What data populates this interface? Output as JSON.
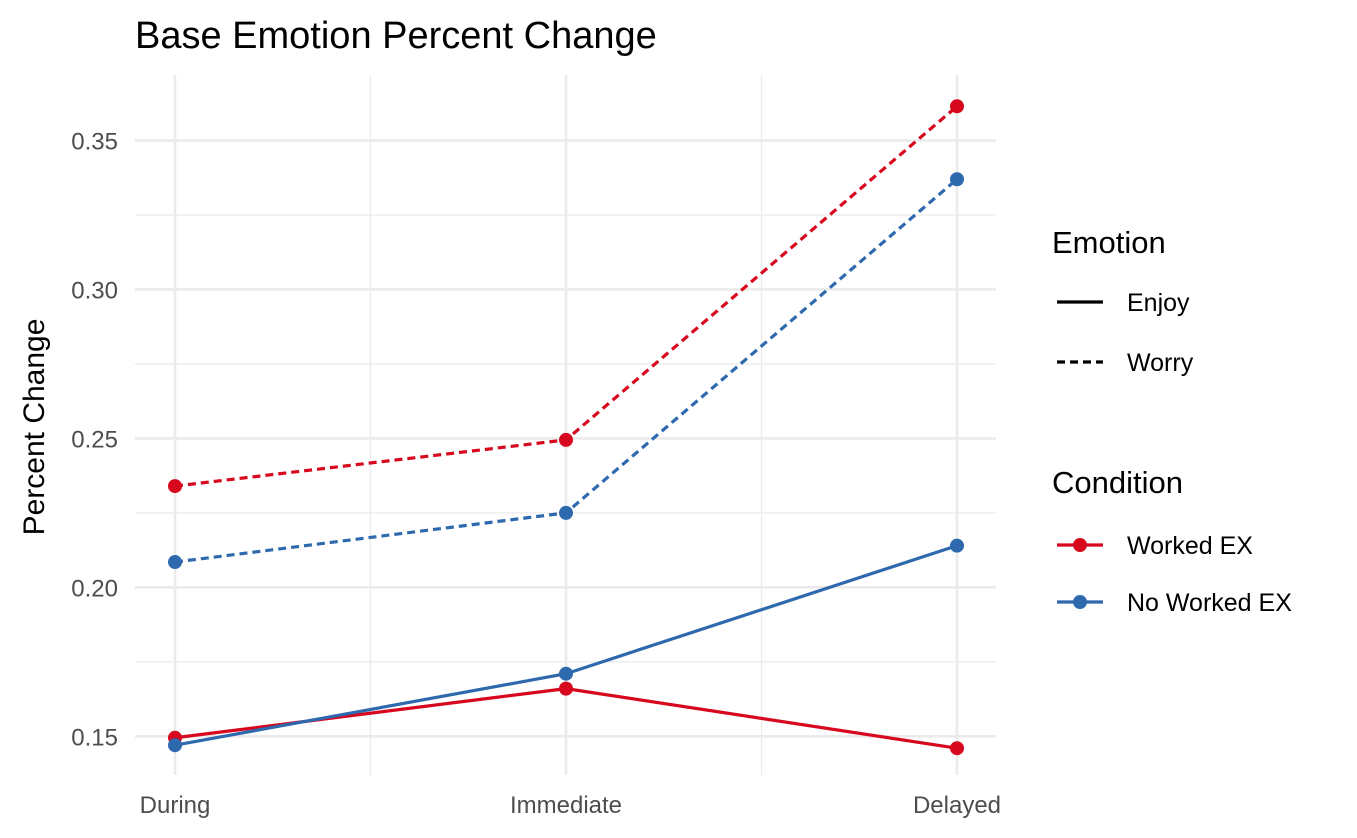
{
  "chart_data": {
    "type": "line",
    "title": "Base Emotion Percent Change",
    "xlabel": "",
    "ylabel": "Percent Change",
    "categories": [
      "During",
      "Immediate",
      "Delayed"
    ],
    "ylim": [
      0.137,
      0.372
    ],
    "yticks": [
      0.15,
      0.2,
      0.25,
      0.3,
      0.35
    ],
    "ytick_labels": [
      "0.15",
      "0.20",
      "0.25",
      "0.30",
      "0.35"
    ],
    "grid": true,
    "legend_position": "right",
    "legends": [
      {
        "title": "Emotion",
        "type": "linetype",
        "entries": [
          {
            "label": "Enjoy",
            "linetype": "solid"
          },
          {
            "label": "Worry",
            "linetype": "dashed"
          }
        ]
      },
      {
        "title": "Condition",
        "type": "color",
        "entries": [
          {
            "label": "Worked EX",
            "color": "#d7071e"
          },
          {
            "label": "No Worked EX",
            "color": "#2e69ae"
          }
        ]
      }
    ],
    "series": [
      {
        "condition": "Worked EX",
        "emotion": "Worry",
        "color": "#d7071e",
        "linetype": "dashed",
        "values": [
          0.234,
          0.2495,
          0.3615
        ]
      },
      {
        "condition": "No Worked EX",
        "emotion": "Worry",
        "color": "#2e69ae",
        "linetype": "dashed",
        "values": [
          0.2085,
          0.225,
          0.337
        ]
      },
      {
        "condition": "Worked EX",
        "emotion": "Enjoy",
        "color": "#d7071e",
        "linetype": "solid",
        "values": [
          0.1495,
          0.166,
          0.146
        ]
      },
      {
        "condition": "No Worked EX",
        "emotion": "Enjoy",
        "color": "#2e69ae",
        "linetype": "solid",
        "values": [
          0.147,
          0.171,
          0.214
        ]
      }
    ]
  }
}
